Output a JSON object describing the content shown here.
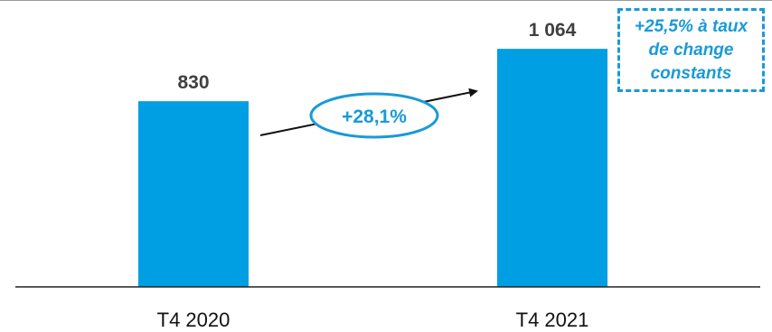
{
  "chart_data": {
    "type": "bar",
    "categories": [
      "T4 2020",
      "T4 2021"
    ],
    "values": [
      830,
      1064
    ],
    "value_labels": [
      "830",
      "1 064"
    ],
    "ylim": [
      0,
      1250
    ],
    "grid": false,
    "bar_color": "#009fe3",
    "label_color": "#404040",
    "growth_label": "+28,1%",
    "growth_color": "#1a9ad6",
    "note": "+25,5% à taux\nde change\nconstants"
  }
}
